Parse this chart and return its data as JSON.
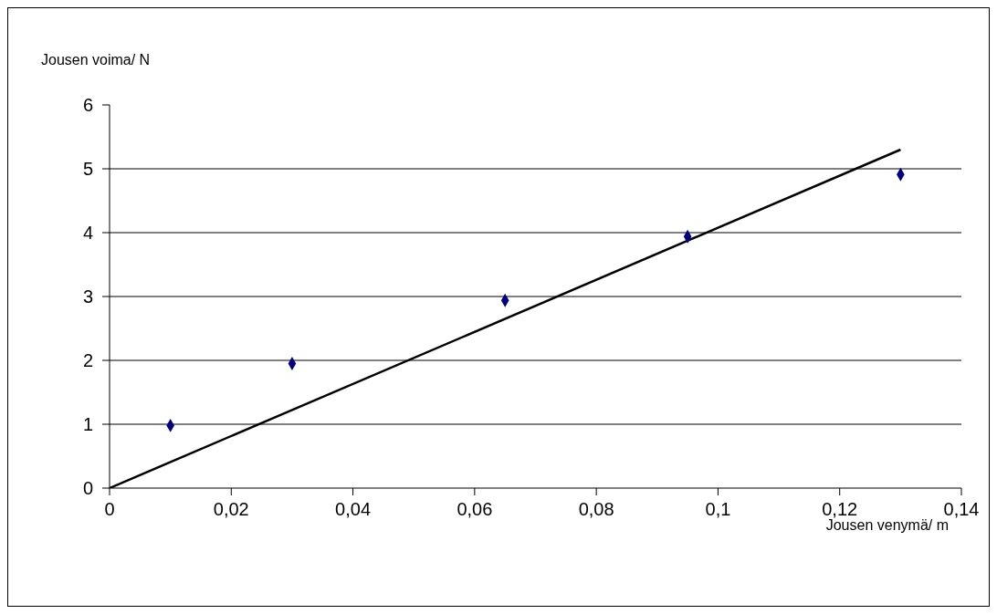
{
  "chart_data": {
    "type": "scatter",
    "xlabel": "Jousen venymä/ m",
    "ylabel": "Jousen voima/ N",
    "series": [
      {
        "color": "#000080",
        "marker": "diamond",
        "x": [
          0.01,
          0.03,
          0.065,
          0.095,
          0.13
        ],
        "values": [
          0.98,
          1.95,
          2.94,
          3.94,
          4.91
        ]
      },
      {
        "type": "line",
        "color": "#000000",
        "marker": "none",
        "line_style": "solid",
        "x": [
          0,
          0.13
        ],
        "values": [
          0,
          5.3
        ]
      }
    ],
    "xlim": [
      0,
      0.14
    ],
    "xticks": [
      {
        "value": 0,
        "label": "0"
      },
      {
        "value": 0.02,
        "label": "0,02"
      },
      {
        "value": 0.04,
        "label": "0,04"
      },
      {
        "value": 0.06,
        "label": "0,06"
      },
      {
        "value": 0.08,
        "label": "0,08"
      },
      {
        "value": 0.1,
        "label": "0,1"
      },
      {
        "value": 0.12,
        "label": "0,12"
      },
      {
        "value": 0.14,
        "label": "0,14"
      }
    ],
    "ylim": [
      0,
      6
    ],
    "yticks": [
      0,
      1,
      2,
      3,
      4,
      5,
      6
    ],
    "grid": "y"
  }
}
